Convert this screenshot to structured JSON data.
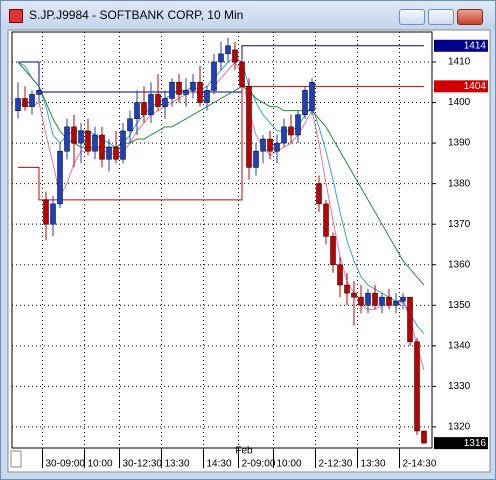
{
  "chart_data": {
    "type": "candlestick",
    "title": "S.JP.J9984 - SOFTBANK CORP, 10 Min",
    "annotation": "Feb",
    "categories": [
      null,
      null,
      null,
      null,
      "30-09:00",
      null,
      null,
      null,
      null,
      null,
      "10:00",
      null,
      null,
      null,
      null,
      "30-12:30",
      null,
      null,
      null,
      null,
      null,
      "13:30",
      null,
      null,
      null,
      null,
      null,
      "14:30",
      null,
      null,
      null,
      null,
      "2-09:00",
      null,
      null,
      null,
      null,
      "10:00",
      null,
      null,
      null,
      null,
      null,
      "2-12:30",
      null,
      null,
      null,
      null,
      null,
      "13:30",
      null,
      null,
      null,
      null,
      null,
      "2-14:30",
      null,
      null,
      null
    ],
    "open": [
      1398,
      1401,
      1399,
      1402,
      1376,
      1370,
      1375,
      1388,
      1394,
      1390,
      1393,
      1388,
      1392,
      1386,
      1389,
      1386,
      1393,
      1396,
      1400,
      1397,
      1402,
      1399,
      1401,
      1405,
      1402,
      1403,
      1405,
      1400,
      1403,
      1410,
      1412,
      1413,
      1410,
      1404,
      1384,
      1388,
      1391,
      1388,
      1390,
      1394,
      1392,
      1397,
      1398,
      1380,
      1375,
      1367,
      1360,
      1355,
      1353,
      1352,
      1350,
      1353,
      1350,
      1352,
      1350,
      1351,
      1352,
      1341,
      1319
    ],
    "high": [
      1405,
      1404,
      1403,
      1404,
      1378,
      1377,
      1390,
      1396,
      1397,
      1395,
      1396,
      1394,
      1394,
      1391,
      1393,
      1395,
      1398,
      1403,
      1404,
      1405,
      1407,
      1403,
      1406,
      1407,
      1406,
      1407,
      1409,
      1404,
      1412,
      1415,
      1416,
      1415,
      1411,
      1406,
      1390,
      1392,
      1393,
      1392,
      1396,
      1397,
      1398,
      1404,
      1406,
      1382,
      1376,
      1368,
      1362,
      1358,
      1356,
      1355,
      1354,
      1355,
      1353,
      1354,
      1353,
      1353,
      1352,
      1342,
      1319
    ],
    "low": [
      1396,
      1398,
      1397,
      1400,
      1366,
      1367,
      1374,
      1386,
      1384,
      1385,
      1387,
      1386,
      1384,
      1383,
      1385,
      1385,
      1390,
      1392,
      1395,
      1395,
      1398,
      1396,
      1399,
      1400,
      1399,
      1401,
      1399,
      1398,
      1402,
      1408,
      1410,
      1408,
      1402,
      1381,
      1382,
      1385,
      1386,
      1385,
      1389,
      1390,
      1390,
      1396,
      1397,
      1373,
      1365,
      1358,
      1352,
      1350,
      1345,
      1348,
      1348,
      1349,
      1348,
      1349,
      1348,
      1349,
      1340,
      1318,
      1316
    ],
    "close": [
      1401,
      1399,
      1402,
      1403,
      1370,
      1375,
      1388,
      1394,
      1390,
      1393,
      1388,
      1392,
      1386,
      1389,
      1386,
      1393,
      1396,
      1400,
      1397,
      1402,
      1399,
      1401,
      1405,
      1402,
      1403,
      1405,
      1400,
      1403,
      1410,
      1412,
      1414,
      1410,
      1404,
      1384,
      1388,
      1391,
      1388,
      1390,
      1394,
      1392,
      1397,
      1403,
      1405,
      1375,
      1367,
      1360,
      1355,
      1353,
      1352,
      1350,
      1353,
      1350,
      1352,
      1350,
      1351,
      1352,
      1341,
      1319,
      1316
    ],
    "up_color": "#1f3fbf",
    "down_color": "#c00000",
    "series": [
      {
        "color": "#3aa0e0",
        "values": [
          1410,
          1409,
          1406,
          1404,
          1399,
          1392,
          1390,
          1392,
          1393,
          1393,
          1393,
          1392,
          1391,
          1390,
          1389,
          1390,
          1392,
          1395,
          1397,
          1399,
          1400,
          1401,
          1402,
          1403,
          1403,
          1404,
          1403,
          1404,
          1406,
          1408,
          1410,
          1411,
          1410,
          1404,
          1400,
          1397,
          1395,
          1393,
          1393,
          1393,
          1394,
          1397,
          1399,
          1394,
          1388,
          1381,
          1373,
          1366,
          1361,
          1357,
          1355,
          1354,
          1353,
          1352,
          1351,
          1351,
          1348,
          1345,
          1343
        ]
      },
      {
        "color": "#f070a0",
        "values": [
          1400,
          1399,
          1399,
          1400,
          1392,
          1385,
          1377,
          1380,
          1385,
          1388,
          1388,
          1389,
          1388,
          1388,
          1387,
          1388,
          1390,
          1393,
          1395,
          1397,
          1398,
          1399,
          1400,
          1401,
          1402,
          1403,
          1402,
          1402,
          1404,
          1406,
          1408,
          1410,
          1407,
          1398,
          1392,
          1389,
          1387,
          1388,
          1389,
          1390,
          1392,
          1395,
          1398,
          1390,
          1380,
          1371,
          1362,
          1356,
          1353,
          1350,
          1349,
          1349,
          1350,
          1350,
          1350,
          1351,
          1347,
          1340,
          1334
        ]
      },
      {
        "color": "#2a8a3a",
        "values": [
          1410,
          1408,
          1406,
          1404,
          1400,
          1396,
          1393,
          1391,
          1390,
          1389,
          1389,
          1389,
          1389,
          1389,
          1389,
          1390,
          1390,
          1391,
          1391,
          1392,
          1393,
          1394,
          1394,
          1395,
          1396,
          1397,
          1398,
          1399,
          1400,
          1401,
          1402,
          1403,
          1404,
          1403,
          1401,
          1400,
          1399,
          1399,
          1398,
          1398,
          1398,
          1398,
          1398,
          1396,
          1394,
          1391,
          1388,
          1385,
          1382,
          1379,
          1376,
          1373,
          1370,
          1367,
          1364,
          1361,
          1359,
          1357,
          1355
        ]
      }
    ],
    "lines": [
      {
        "color": "#00008b",
        "values": [
          1410,
          1410,
          1410,
          1402.6,
          1402.6,
          1402.6,
          1402.6,
          1402.6,
          1402.6,
          1402.6,
          1402.6,
          1402.6,
          1402.6,
          1402.6,
          1402.6,
          1402.6,
          1402.6,
          1402.6,
          1402.6,
          1402.6,
          1402.6,
          1402.6,
          1402.6,
          1402.6,
          1402.6,
          1402.6,
          1402.6,
          1402.6,
          1402.6,
          1402.6,
          1402.6,
          1402.6,
          1414,
          1414,
          1414,
          1414,
          1414,
          1414,
          1414,
          1414,
          1414,
          1414,
          1414,
          1414,
          1414,
          1414,
          1414,
          1414,
          1414,
          1414,
          1414,
          1414,
          1414,
          1414,
          1414,
          1414,
          1414,
          1414,
          1414
        ]
      },
      {
        "color": "#d00000",
        "values": [
          1384,
          1384,
          1384,
          1376,
          1376,
          1376,
          1376,
          1376,
          1376,
          1376,
          1376,
          1376,
          1376,
          1376,
          1376,
          1376,
          1376,
          1376,
          1376,
          1376,
          1376,
          1376,
          1376,
          1376,
          1376,
          1376,
          1376,
          1376,
          1376,
          1376,
          1376,
          1376,
          1404,
          1404,
          1404,
          1404,
          1404,
          1404,
          1404,
          1404,
          1404,
          1404,
          1404,
          1404,
          1404,
          1404,
          1404,
          1404,
          1404,
          1404,
          1404,
          1404,
          1404,
          1404,
          1404,
          1404,
          1404,
          1404,
          1404
        ]
      }
    ],
    "ylim": [
      1314.8,
      1417.4
    ],
    "yticks": [
      1320,
      1330,
      1340,
      1350,
      1360,
      1370,
      1380,
      1390,
      1400,
      1410
    ],
    "grid": true,
    "last_color": "#000000"
  }
}
